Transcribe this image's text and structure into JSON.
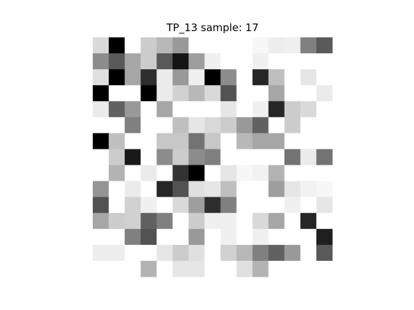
{
  "chart_data": {
    "type": "heatmap",
    "title": "TP_13 sample: 17",
    "xlabel": "",
    "ylabel": "",
    "axes_visible": false,
    "colormap": "gray_r",
    "value_range": [
      0,
      1
    ],
    "rows": 15,
    "cols": 15,
    "values": [
      [
        0.15,
        1.0,
        0.0,
        0.2,
        0.28,
        0.4,
        0.0,
        0.0,
        0.0,
        0.0,
        0.03,
        0.07,
        0.06,
        0.5,
        0.65
      ],
      [
        0.45,
        0.65,
        0.35,
        0.2,
        0.65,
        0.92,
        0.38,
        0.06,
        0.0,
        0.0,
        0.06,
        0.0,
        0.0,
        0.0,
        0.0
      ],
      [
        0.12,
        1.0,
        0.35,
        0.82,
        0.08,
        0.4,
        0.06,
        1.0,
        0.45,
        0.0,
        0.85,
        0.25,
        0.0,
        0.1,
        0.0
      ],
      [
        1.0,
        0.0,
        0.0,
        1.0,
        0.08,
        0.18,
        0.28,
        0.15,
        0.68,
        0.0,
        0.0,
        0.35,
        0.0,
        0.0,
        0.08
      ],
      [
        0.08,
        0.62,
        0.4,
        0.0,
        0.35,
        0.0,
        0.0,
        0.0,
        0.1,
        0.0,
        0.06,
        0.85,
        0.2,
        0.15,
        0.0
      ],
      [
        0.0,
        0.0,
        0.5,
        0.0,
        0.0,
        0.25,
        0.1,
        0.15,
        0.2,
        0.4,
        0.62,
        0.0,
        0.2,
        0.0,
        0.0
      ],
      [
        1.0,
        0.25,
        0.0,
        0.0,
        0.22,
        0.22,
        0.55,
        0.22,
        0.0,
        0.28,
        0.35,
        0.35,
        0.0,
        0.0,
        0.0
      ],
      [
        0.0,
        0.2,
        0.9,
        0.0,
        0.45,
        0.2,
        0.45,
        0.5,
        0.0,
        0.0,
        0.0,
        0.0,
        0.55,
        0.08,
        0.55
      ],
      [
        0.0,
        0.3,
        0.0,
        0.08,
        0.0,
        0.8,
        1.0,
        0.0,
        0.1,
        0.03,
        0.05,
        0.3,
        0.0,
        0.0,
        0.0
      ],
      [
        0.42,
        0.0,
        0.08,
        0.0,
        0.85,
        0.68,
        0.12,
        0.1,
        0.25,
        0.0,
        0.0,
        0.38,
        0.1,
        0.05,
        0.03
      ],
      [
        0.68,
        0.0,
        0.18,
        0.06,
        0.0,
        0.15,
        0.38,
        0.82,
        0.5,
        0.0,
        0.0,
        0.0,
        0.06,
        0.0,
        0.1
      ],
      [
        0.35,
        0.2,
        0.18,
        0.62,
        0.5,
        0.0,
        0.2,
        0.06,
        0.06,
        0.0,
        0.15,
        0.35,
        0.0,
        0.85,
        0.0
      ],
      [
        0.0,
        0.0,
        0.5,
        0.68,
        0.0,
        0.0,
        0.4,
        0.0,
        0.06,
        0.0,
        0.06,
        0.0,
        0.0,
        0.0,
        0.88
      ],
      [
        0.07,
        0.07,
        0.0,
        0.0,
        0.1,
        0.2,
        0.12,
        0.0,
        0.18,
        0.28,
        0.5,
        0.62,
        0.4,
        0.0,
        0.65
      ],
      [
        0.0,
        0.0,
        0.0,
        0.3,
        0.0,
        0.1,
        0.1,
        0.0,
        0.0,
        0.12,
        0.3,
        0.0,
        0.0,
        0.0,
        0.0
      ]
    ]
  }
}
